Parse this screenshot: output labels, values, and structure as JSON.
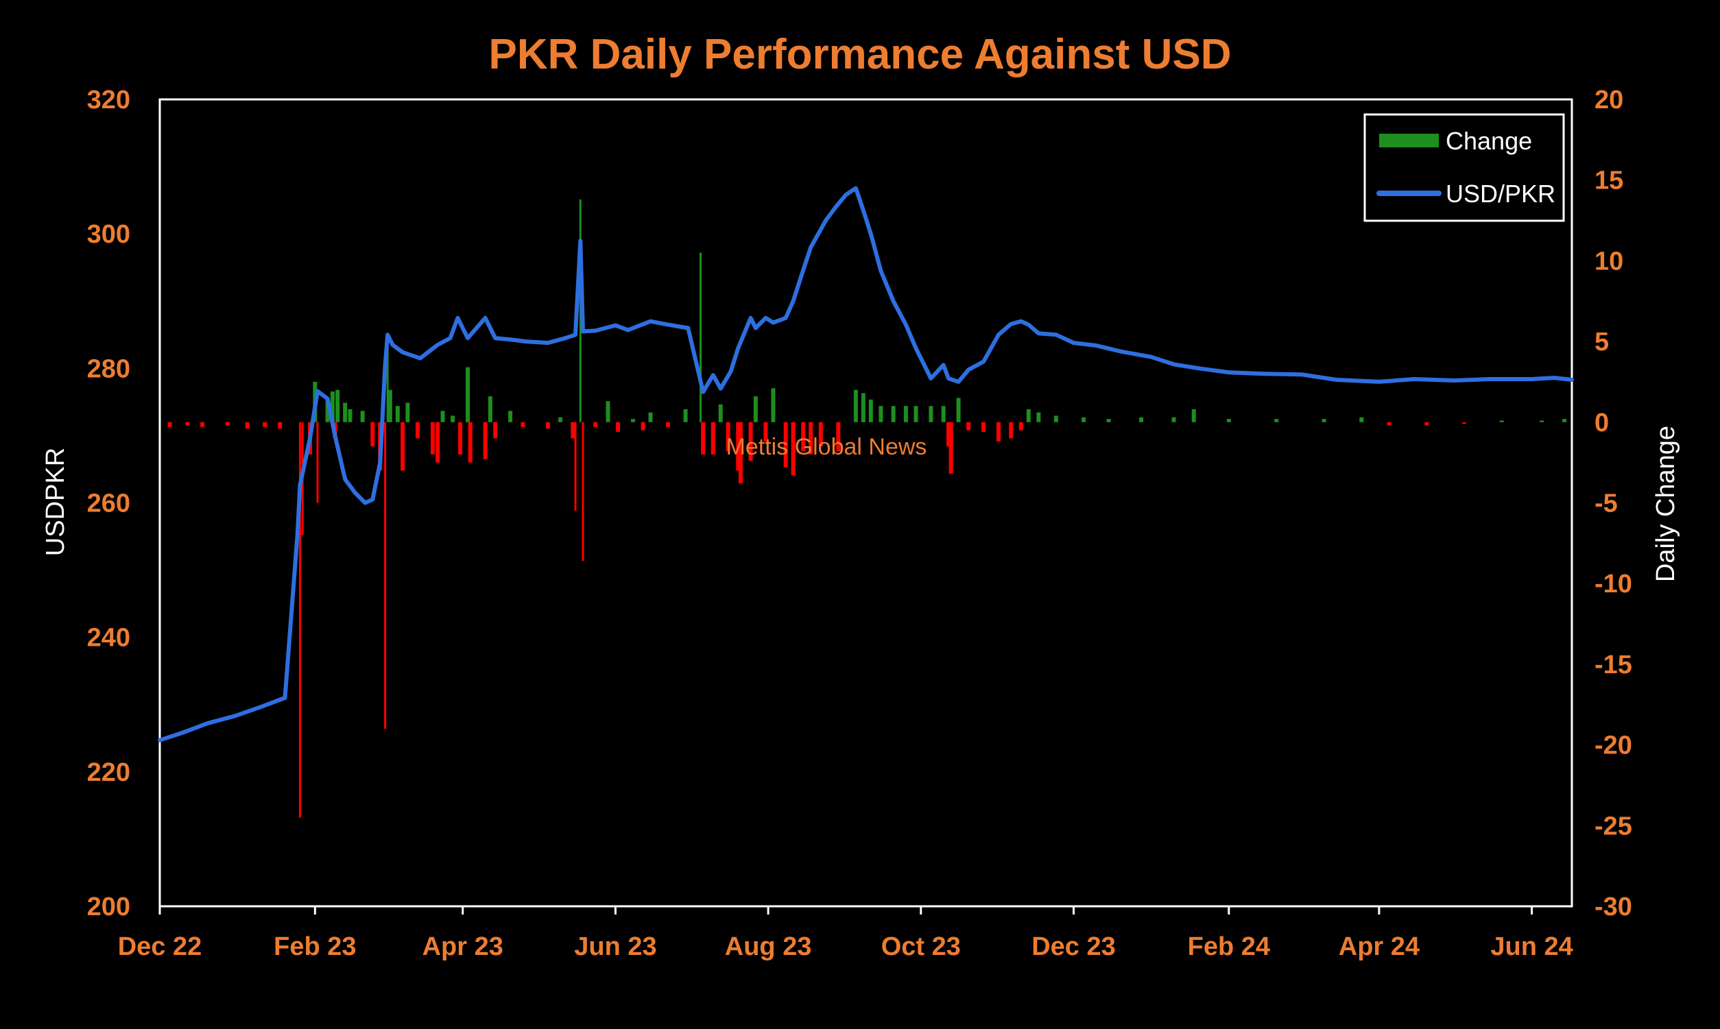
{
  "chart_data": {
    "type": "bar+line",
    "title": "PKR Daily Performance Against USD",
    "ylabel_left": "USDPKR",
    "ylabel_right": "Daily Change",
    "ylim_left": [
      200,
      320
    ],
    "ylim_right": [
      -30,
      20
    ],
    "yticks_left": [
      "320",
      "300",
      "280",
      "260",
      "240",
      "220",
      "200"
    ],
    "yticks_right": [
      "20",
      "15",
      "10",
      "5",
      "0",
      "-5",
      "-10",
      "-15",
      "-20",
      "-25",
      "-30"
    ],
    "xticks": [
      "Dec 22",
      "Feb 23",
      "Apr 23",
      "Jun 23",
      "Aug 23",
      "Oct 23",
      "Dec 23",
      "Feb 24",
      "Apr 24",
      "Jun 24"
    ],
    "xtick_dates": [
      "2022-12-01",
      "2023-02-01",
      "2023-04-01",
      "2023-06-01",
      "2023-08-01",
      "2023-10-01",
      "2023-12-01",
      "2024-02-01",
      "2024-04-01",
      "2024-06-01"
    ],
    "x_range": [
      "2022-12-01",
      "2024-06-17"
    ],
    "watermark": "Mettis Global News",
    "legend": {
      "position": "top-right",
      "entries": [
        "Change",
        "USD/PKR"
      ]
    },
    "colors": {
      "positive": "#1E8E1E",
      "negative": "#FF0000",
      "line": "#2E6FE0",
      "text": "#ED7D31",
      "axis": "#FFFFFF"
    },
    "series": [
      {
        "name": "USD/PKR",
        "kind": "line",
        "axis": "left",
        "points": [
          [
            "2022-12-01",
            224.7
          ],
          [
            "2022-12-10",
            225.8
          ],
          [
            "2022-12-20",
            227.2
          ],
          [
            "2022-12-31",
            228.3
          ],
          [
            "2023-01-10",
            229.6
          ],
          [
            "2023-01-20",
            231.0
          ],
          [
            "2023-01-25",
            255.4
          ],
          [
            "2023-01-26",
            262.6
          ],
          [
            "2023-01-30",
            269.6
          ],
          [
            "2023-02-02",
            276.6
          ],
          [
            "2023-02-06",
            275.5
          ],
          [
            "2023-02-09",
            270.0
          ],
          [
            "2023-02-13",
            263.5
          ],
          [
            "2023-02-17",
            261.5
          ],
          [
            "2023-02-21",
            260.0
          ],
          [
            "2023-02-24",
            260.5
          ],
          [
            "2023-02-27",
            266.0
          ],
          [
            "2023-03-01",
            280.5
          ],
          [
            "2023-03-02",
            285.0
          ],
          [
            "2023-03-04",
            283.5
          ],
          [
            "2023-03-08",
            282.4
          ],
          [
            "2023-03-15",
            281.5
          ],
          [
            "2023-03-22",
            283.5
          ],
          [
            "2023-03-27",
            284.5
          ],
          [
            "2023-03-30",
            287.5
          ],
          [
            "2023-04-03",
            284.5
          ],
          [
            "2023-04-10",
            287.5
          ],
          [
            "2023-04-14",
            284.5
          ],
          [
            "2023-04-20",
            284.3
          ],
          [
            "2023-04-26",
            284.0
          ],
          [
            "2023-05-05",
            283.8
          ],
          [
            "2023-05-12",
            284.5
          ],
          [
            "2023-05-16",
            285.0
          ],
          [
            "2023-05-18",
            299.0
          ],
          [
            "2023-05-19",
            285.5
          ],
          [
            "2023-05-24",
            285.6
          ],
          [
            "2023-06-01",
            286.4
          ],
          [
            "2023-06-06",
            285.7
          ],
          [
            "2023-06-15",
            287.0
          ],
          [
            "2023-06-22",
            286.5
          ],
          [
            "2023-06-30",
            286.0
          ],
          [
            "2023-07-06",
            276.5
          ],
          [
            "2023-07-10",
            279.0
          ],
          [
            "2023-07-13",
            277.0
          ],
          [
            "2023-07-17",
            279.5
          ],
          [
            "2023-07-20",
            283.0
          ],
          [
            "2023-07-25",
            287.5
          ],
          [
            "2023-07-27",
            286.0
          ],
          [
            "2023-07-31",
            287.5
          ],
          [
            "2023-08-03",
            286.8
          ],
          [
            "2023-08-08",
            287.5
          ],
          [
            "2023-08-11",
            290.0
          ],
          [
            "2023-08-14",
            293.5
          ],
          [
            "2023-08-18",
            298.0
          ],
          [
            "2023-08-24",
            302.0
          ],
          [
            "2023-08-28",
            304.0
          ],
          [
            "2023-09-01",
            305.8
          ],
          [
            "2023-09-05",
            306.8
          ],
          [
            "2023-09-08",
            303.5
          ],
          [
            "2023-09-11",
            300.0
          ],
          [
            "2023-09-15",
            294.5
          ],
          [
            "2023-09-20",
            290.0
          ],
          [
            "2023-09-25",
            286.5
          ],
          [
            "2023-09-29",
            283.0
          ],
          [
            "2023-10-05",
            278.5
          ],
          [
            "2023-10-10",
            280.5
          ],
          [
            "2023-10-12",
            278.5
          ],
          [
            "2023-10-16",
            278.0
          ],
          [
            "2023-10-20",
            279.8
          ],
          [
            "2023-10-26",
            281.0
          ],
          [
            "2023-11-01",
            285.0
          ],
          [
            "2023-11-06",
            286.6
          ],
          [
            "2023-11-10",
            287.0
          ],
          [
            "2023-11-13",
            286.5
          ],
          [
            "2023-11-17",
            285.2
          ],
          [
            "2023-11-24",
            285.0
          ],
          [
            "2023-12-01",
            283.8
          ],
          [
            "2023-12-10",
            283.4
          ],
          [
            "2023-12-20",
            282.5
          ],
          [
            "2024-01-01",
            281.7
          ],
          [
            "2024-01-10",
            280.6
          ],
          [
            "2024-01-20",
            280.0
          ],
          [
            "2024-02-01",
            279.4
          ],
          [
            "2024-02-15",
            279.2
          ],
          [
            "2024-03-01",
            279.1
          ],
          [
            "2024-03-15",
            278.3
          ],
          [
            "2024-04-01",
            278.0
          ],
          [
            "2024-04-15",
            278.4
          ],
          [
            "2024-05-01",
            278.2
          ],
          [
            "2024-05-15",
            278.4
          ],
          [
            "2024-06-01",
            278.4
          ],
          [
            "2024-06-10",
            278.6
          ],
          [
            "2024-06-17",
            278.3
          ]
        ]
      },
      {
        "name": "Change",
        "kind": "bar",
        "axis": "right",
        "points": [
          [
            "2022-12-05",
            -0.3
          ],
          [
            "2022-12-12",
            -0.2
          ],
          [
            "2022-12-18",
            -0.3
          ],
          [
            "2022-12-28",
            -0.2
          ],
          [
            "2023-01-05",
            -0.4
          ],
          [
            "2023-01-12",
            -0.3
          ],
          [
            "2023-01-18",
            -0.4
          ],
          [
            "2023-01-26",
            -24.5
          ],
          [
            "2023-01-27",
            -7.0
          ],
          [
            "2023-01-30",
            -2.0
          ],
          [
            "2023-02-01",
            2.5
          ],
          [
            "2023-02-02",
            -5.0
          ],
          [
            "2023-02-06",
            1.4
          ],
          [
            "2023-02-08",
            1.9
          ],
          [
            "2023-02-09",
            -1.0
          ],
          [
            "2023-02-10",
            2.0
          ],
          [
            "2023-02-13",
            1.2
          ],
          [
            "2023-02-15",
            0.8
          ],
          [
            "2023-02-20",
            0.7
          ],
          [
            "2023-02-24",
            -1.5
          ],
          [
            "2023-02-27",
            -3.0
          ],
          [
            "2023-03-01",
            -19.0
          ],
          [
            "2023-03-02",
            5.5
          ],
          [
            "2023-03-03",
            2.0
          ],
          [
            "2023-03-06",
            1.0
          ],
          [
            "2023-03-08",
            -3.0
          ],
          [
            "2023-03-10",
            1.2
          ],
          [
            "2023-03-14",
            -1.0
          ],
          [
            "2023-03-20",
            -2.0
          ],
          [
            "2023-03-22",
            -2.5
          ],
          [
            "2023-03-24",
            0.7
          ],
          [
            "2023-03-28",
            0.4
          ],
          [
            "2023-03-31",
            -2.0
          ],
          [
            "2023-04-03",
            3.4
          ],
          [
            "2023-04-04",
            -2.5
          ],
          [
            "2023-04-10",
            -2.3
          ],
          [
            "2023-04-12",
            1.6
          ],
          [
            "2023-04-14",
            -1.0
          ],
          [
            "2023-04-20",
            0.7
          ],
          [
            "2023-04-25",
            -0.3
          ],
          [
            "2023-05-05",
            -0.4
          ],
          [
            "2023-05-10",
            0.3
          ],
          [
            "2023-05-15",
            -1.0
          ],
          [
            "2023-05-16",
            -5.5
          ],
          [
            "2023-05-18",
            13.8
          ],
          [
            "2023-05-19",
            -8.6
          ],
          [
            "2023-05-24",
            -0.3
          ],
          [
            "2023-05-29",
            1.3
          ],
          [
            "2023-06-02",
            -0.6
          ],
          [
            "2023-06-08",
            0.2
          ],
          [
            "2023-06-12",
            -0.5
          ],
          [
            "2023-06-15",
            0.6
          ],
          [
            "2023-06-22",
            -0.3
          ],
          [
            "2023-06-29",
            0.8
          ],
          [
            "2023-07-05",
            10.5
          ],
          [
            "2023-07-06",
            -2.0
          ],
          [
            "2023-07-10",
            -2.0
          ],
          [
            "2023-07-13",
            1.1
          ],
          [
            "2023-07-16",
            -1.8
          ],
          [
            "2023-07-20",
            -3.0
          ],
          [
            "2023-07-21",
            -3.8
          ],
          [
            "2023-07-25",
            -2.4
          ],
          [
            "2023-07-27",
            1.6
          ],
          [
            "2023-07-31",
            -1.2
          ],
          [
            "2023-08-03",
            2.1
          ],
          [
            "2023-08-08",
            -2.8
          ],
          [
            "2023-08-11",
            -3.3
          ],
          [
            "2023-08-15",
            -1.8
          ],
          [
            "2023-08-18",
            -2.0
          ],
          [
            "2023-08-22",
            -1.5
          ],
          [
            "2023-08-29",
            -1.8
          ],
          [
            "2023-09-05",
            2.0
          ],
          [
            "2023-09-08",
            1.8
          ],
          [
            "2023-09-11",
            1.4
          ],
          [
            "2023-09-15",
            1.0
          ],
          [
            "2023-09-20",
            1.0
          ],
          [
            "2023-09-25",
            1.0
          ],
          [
            "2023-09-29",
            1.0
          ],
          [
            "2023-10-05",
            1.0
          ],
          [
            "2023-10-10",
            1.0
          ],
          [
            "2023-10-12",
            -1.5
          ],
          [
            "2023-10-13",
            -3.2
          ],
          [
            "2023-10-16",
            1.5
          ],
          [
            "2023-10-20",
            -0.5
          ],
          [
            "2023-10-26",
            -0.6
          ],
          [
            "2023-11-01",
            -1.2
          ],
          [
            "2023-11-06",
            -1.0
          ],
          [
            "2023-11-10",
            -0.5
          ],
          [
            "2023-11-13",
            0.8
          ],
          [
            "2023-11-17",
            0.6
          ],
          [
            "2023-11-24",
            0.4
          ],
          [
            "2023-12-05",
            0.3
          ],
          [
            "2023-12-15",
            0.2
          ],
          [
            "2023-12-28",
            0.3
          ],
          [
            "2024-01-10",
            0.3
          ],
          [
            "2024-01-18",
            0.8
          ],
          [
            "2024-02-01",
            0.2
          ],
          [
            "2024-02-20",
            0.2
          ],
          [
            "2024-03-10",
            0.2
          ],
          [
            "2024-03-25",
            0.3
          ],
          [
            "2024-04-05",
            -0.2
          ],
          [
            "2024-04-20",
            -0.2
          ],
          [
            "2024-05-05",
            -0.1
          ],
          [
            "2024-05-20",
            0.1
          ],
          [
            "2024-06-05",
            0.1
          ],
          [
            "2024-06-14",
            0.2
          ]
        ]
      }
    ]
  }
}
